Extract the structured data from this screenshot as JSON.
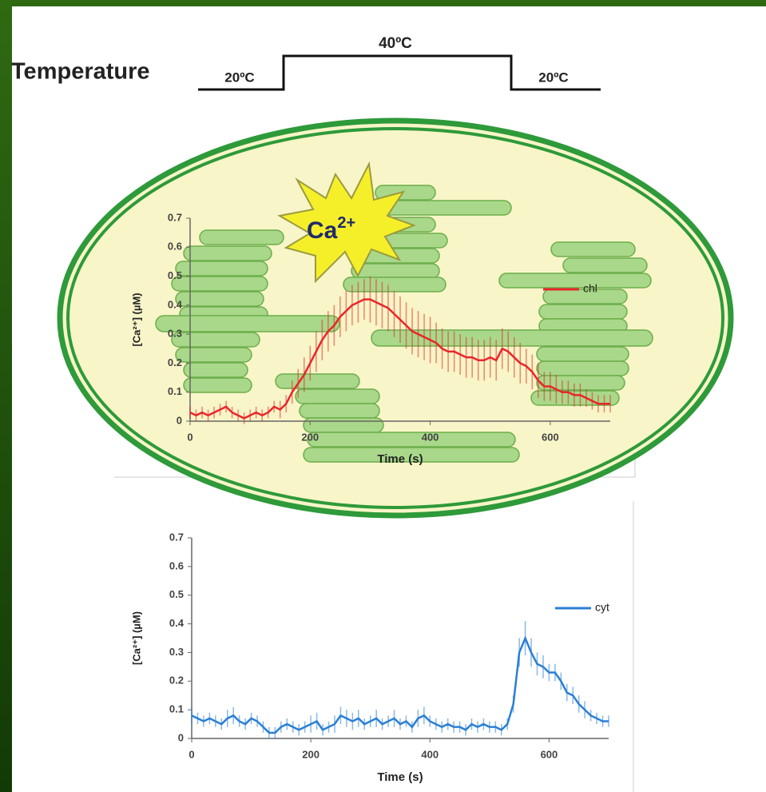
{
  "diagram": {
    "temperature_label": "Temperature",
    "low_before": "20ºC",
    "high": "40ºC",
    "low_after": "20ºC",
    "ion": "Ca",
    "ion_charge": "2+"
  },
  "chart_data": [
    {
      "type": "line",
      "xlabel": "Time (s)",
      "ylabel": "[Ca²⁺] (µM)",
      "x": [
        0,
        10,
        20,
        30,
        40,
        50,
        60,
        70,
        80,
        90,
        100,
        110,
        120,
        130,
        140,
        150,
        160,
        170,
        180,
        190,
        200,
        210,
        220,
        230,
        240,
        250,
        260,
        270,
        280,
        290,
        300,
        310,
        320,
        330,
        340,
        350,
        360,
        370,
        380,
        390,
        400,
        410,
        420,
        430,
        440,
        450,
        460,
        470,
        480,
        490,
        500,
        510,
        520,
        530,
        540,
        550,
        560,
        570,
        580,
        590,
        600,
        610,
        620,
        630,
        640,
        650,
        660,
        670,
        680,
        690,
        700
      ],
      "series": [
        {
          "name": "chl",
          "color": "#e8262a",
          "values": [
            0.03,
            0.02,
            0.03,
            0.02,
            0.03,
            0.04,
            0.05,
            0.03,
            0.02,
            0.01,
            0.02,
            0.03,
            0.02,
            0.03,
            0.05,
            0.04,
            0.06,
            0.1,
            0.13,
            0.16,
            0.2,
            0.24,
            0.28,
            0.31,
            0.33,
            0.36,
            0.38,
            0.4,
            0.41,
            0.42,
            0.42,
            0.41,
            0.4,
            0.39,
            0.37,
            0.35,
            0.33,
            0.31,
            0.3,
            0.29,
            0.28,
            0.27,
            0.25,
            0.24,
            0.24,
            0.23,
            0.22,
            0.22,
            0.21,
            0.21,
            0.22,
            0.21,
            0.25,
            0.24,
            0.22,
            0.2,
            0.19,
            0.17,
            0.14,
            0.12,
            0.12,
            0.11,
            0.1,
            0.1,
            0.09,
            0.09,
            0.08,
            0.07,
            0.06,
            0.06,
            0.06
          ],
          "errors": [
            0.02,
            0.02,
            0.02,
            0.02,
            0.02,
            0.02,
            0.02,
            0.02,
            0.02,
            0.02,
            0.02,
            0.02,
            0.02,
            0.02,
            0.02,
            0.03,
            0.03,
            0.04,
            0.05,
            0.06,
            0.06,
            0.07,
            0.07,
            0.07,
            0.07,
            0.07,
            0.07,
            0.07,
            0.07,
            0.07,
            0.08,
            0.08,
            0.08,
            0.08,
            0.08,
            0.08,
            0.08,
            0.08,
            0.08,
            0.08,
            0.08,
            0.07,
            0.07,
            0.07,
            0.07,
            0.07,
            0.07,
            0.07,
            0.07,
            0.07,
            0.07,
            0.07,
            0.07,
            0.07,
            0.07,
            0.07,
            0.06,
            0.06,
            0.06,
            0.05,
            0.05,
            0.05,
            0.04,
            0.04,
            0.04,
            0.04,
            0.03,
            0.03,
            0.03,
            0.03,
            0.03
          ]
        }
      ],
      "xlim": [
        0,
        700
      ],
      "xticks": [
        0,
        200,
        400,
        600
      ],
      "ylim": [
        0,
        0.7
      ],
      "yticks": [
        0,
        0.1,
        0.2,
        0.3,
        0.4,
        0.5,
        0.6,
        0.7
      ]
    },
    {
      "type": "line",
      "xlabel": "Time (s)",
      "ylabel": "[Ca²⁺] (µM)",
      "x": [
        0,
        10,
        20,
        30,
        40,
        50,
        60,
        70,
        80,
        90,
        100,
        110,
        120,
        130,
        140,
        150,
        160,
        170,
        180,
        190,
        200,
        210,
        220,
        230,
        240,
        250,
        260,
        270,
        280,
        290,
        300,
        310,
        320,
        330,
        340,
        350,
        360,
        370,
        380,
        390,
        400,
        410,
        420,
        430,
        440,
        450,
        460,
        470,
        480,
        490,
        500,
        510,
        520,
        530,
        540,
        550,
        560,
        570,
        580,
        590,
        600,
        610,
        620,
        630,
        640,
        650,
        660,
        670,
        680,
        690,
        700
      ],
      "series": [
        {
          "name": "cyt",
          "color": "#2a7fd4",
          "values": [
            0.08,
            0.07,
            0.06,
            0.07,
            0.06,
            0.05,
            0.07,
            0.08,
            0.06,
            0.05,
            0.07,
            0.06,
            0.04,
            0.02,
            0.02,
            0.04,
            0.05,
            0.04,
            0.03,
            0.04,
            0.05,
            0.06,
            0.03,
            0.04,
            0.05,
            0.08,
            0.07,
            0.06,
            0.07,
            0.05,
            0.06,
            0.07,
            0.05,
            0.06,
            0.07,
            0.05,
            0.06,
            0.04,
            0.07,
            0.08,
            0.06,
            0.05,
            0.04,
            0.05,
            0.04,
            0.04,
            0.03,
            0.05,
            0.04,
            0.05,
            0.04,
            0.04,
            0.03,
            0.05,
            0.12,
            0.3,
            0.35,
            0.3,
            0.26,
            0.25,
            0.23,
            0.23,
            0.2,
            0.16,
            0.15,
            0.12,
            0.1,
            0.08,
            0.07,
            0.06,
            0.06
          ],
          "errors": [
            0.03,
            0.02,
            0.02,
            0.02,
            0.02,
            0.02,
            0.03,
            0.03,
            0.02,
            0.02,
            0.02,
            0.02,
            0.02,
            0.02,
            0.02,
            0.02,
            0.02,
            0.02,
            0.02,
            0.02,
            0.03,
            0.03,
            0.02,
            0.02,
            0.03,
            0.03,
            0.03,
            0.03,
            0.03,
            0.02,
            0.02,
            0.03,
            0.02,
            0.02,
            0.03,
            0.02,
            0.02,
            0.02,
            0.03,
            0.03,
            0.02,
            0.02,
            0.02,
            0.02,
            0.02,
            0.02,
            0.02,
            0.02,
            0.02,
            0.02,
            0.02,
            0.02,
            0.02,
            0.02,
            0.03,
            0.05,
            0.06,
            0.05,
            0.04,
            0.04,
            0.03,
            0.03,
            0.03,
            0.03,
            0.03,
            0.03,
            0.03,
            0.02,
            0.02,
            0.02,
            0.02
          ]
        }
      ],
      "xlim": [
        0,
        700
      ],
      "xticks": [
        0,
        200,
        400,
        600
      ],
      "ylim": [
        0,
        0.7
      ],
      "yticks": [
        0,
        0.1,
        0.2,
        0.3,
        0.4,
        0.5,
        0.6,
        0.7
      ]
    }
  ]
}
